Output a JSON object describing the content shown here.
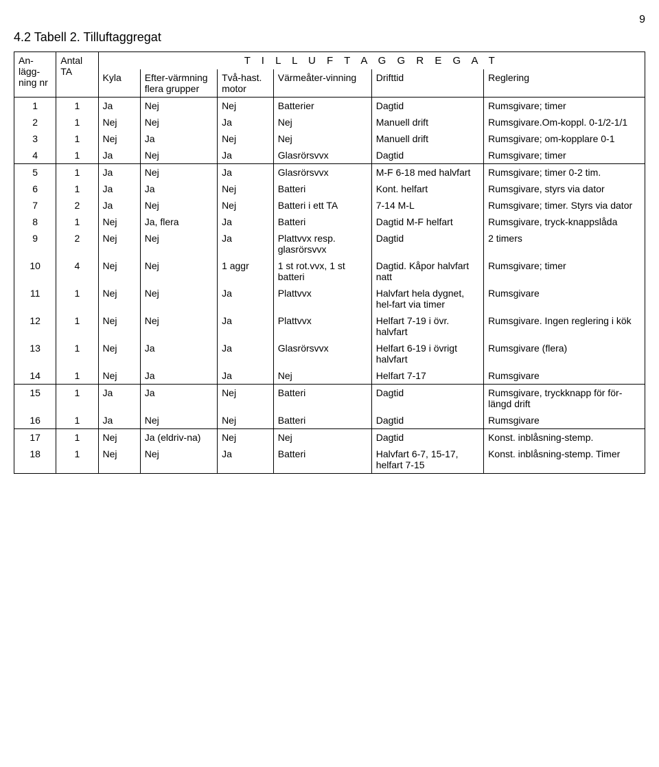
{
  "page_number": "9",
  "title": "4.2 Tabell 2. Tilluftaggregat",
  "super_header": "T I L L U F T A G G R E G A T",
  "headers": {
    "nr": "An-lägg-ning nr",
    "ta": "Antal TA",
    "kyla": "Kyla",
    "eft": "Efter-värmning flera grupper",
    "tva": "Två-hast. motor",
    "varm": "Värmeåter-vinning",
    "drift": "Drifttid",
    "reg": "Reglering"
  },
  "blocks": [
    {
      "rows": [
        {
          "nr": "1",
          "ta": "1",
          "kyla": "Ja",
          "eft": "Nej",
          "tva": "Nej",
          "varm": "Batterier",
          "drift": "Dagtid",
          "reg": "Rumsgivare; timer"
        },
        {
          "nr": "2",
          "ta": "1",
          "kyla": "Nej",
          "eft": "Nej",
          "tva": "Ja",
          "varm": "Nej",
          "drift": "Manuell drift",
          "reg": "Rumsgivare.Om-koppl. 0-1/2-1/1"
        },
        {
          "nr": "3",
          "ta": "1",
          "kyla": "Nej",
          "eft": "Ja",
          "tva": "Nej",
          "varm": "Nej",
          "drift": "Manuell drift",
          "reg": "Rumsgivare; om-kopplare 0-1"
        },
        {
          "nr": "4",
          "ta": "1",
          "kyla": "Ja",
          "eft": "Nej",
          "tva": "Ja",
          "varm": "Glasrörsvvx",
          "drift": "Dagtid",
          "reg": "Rumsgivare; timer"
        }
      ]
    },
    {
      "rows": [
        {
          "nr": "5",
          "ta": "1",
          "kyla": "Ja",
          "eft": "Nej",
          "tva": "Ja",
          "varm": "Glasrörsvvx",
          "drift": "M-F 6-18 med halvfart",
          "reg": "Rumsgivare; timer 0-2 tim."
        },
        {
          "nr": "6",
          "ta": "1",
          "kyla": "Ja",
          "eft": "Ja",
          "tva": "Nej",
          "varm": "Batteri",
          "drift": "Kont. helfart",
          "reg": "Rumsgivare, styrs via dator"
        },
        {
          "nr": "7",
          "ta": "2",
          "kyla": "Ja",
          "eft": "Nej",
          "tva": "Nej",
          "varm": "Batteri i ett TA",
          "drift": "7-14 M-L",
          "reg": "Rumsgivare; timer. Styrs via dator"
        },
        {
          "nr": "8",
          "ta": "1",
          "kyla": "Nej",
          "eft": "Ja, flera",
          "tva": "Ja",
          "varm": "Batteri",
          "drift": "Dagtid M-F helfart",
          "reg": "Rumsgivare, tryck-knappslåda"
        },
        {
          "nr": "9",
          "ta": "2",
          "kyla": "Nej",
          "eft": "Nej",
          "tva": "Ja",
          "varm": "Plattvvx resp. glasrörsvvx",
          "drift": "Dagtid",
          "reg": "2 timers"
        },
        {
          "nr": "10",
          "ta": "4",
          "kyla": "Nej",
          "eft": "Nej",
          "tva": "1 aggr",
          "varm": "1 st rot.vvx, 1 st batteri",
          "drift": "Dagtid. Kåpor halvfart natt",
          "reg": "Rumsgivare; timer"
        },
        {
          "nr": "11",
          "ta": "1",
          "kyla": "Nej",
          "eft": "Nej",
          "tva": "Ja",
          "varm": "Plattvvx",
          "drift": "Halvfart hela dygnet, hel-fart via timer",
          "reg": "Rumsgivare"
        },
        {
          "nr": "12",
          "ta": "1",
          "kyla": "Nej",
          "eft": "Nej",
          "tva": "Ja",
          "varm": "Plattvvx",
          "drift": "Helfart 7-19 i övr. halvfart",
          "reg": "Rumsgivare. Ingen reglering i kök"
        },
        {
          "nr": "13",
          "ta": "1",
          "kyla": "Nej",
          "eft": "Ja",
          "tva": "Ja",
          "varm": "Glasrörsvvx",
          "drift": "Helfart 6-19 i övrigt halvfart",
          "reg": "Rumsgivare (flera)"
        },
        {
          "nr": "14",
          "ta": "1",
          "kyla": "Nej",
          "eft": "Ja",
          "tva": "Ja",
          "varm": "Nej",
          "drift": "Helfart 7-17",
          "reg": "Rumsgivare"
        }
      ]
    },
    {
      "rows": [
        {
          "nr": "15",
          "ta": "1",
          "kyla": "Ja",
          "eft": "Ja",
          "tva": "Nej",
          "varm": "Batteri",
          "drift": "Dagtid",
          "reg": "Rumsgivare, tryckknapp för för-längd drift"
        },
        {
          "nr": "16",
          "ta": "1",
          "kyla": "Ja",
          "eft": "Nej",
          "tva": "Nej",
          "varm": "Batteri",
          "drift": "Dagtid",
          "reg": "Rumsgivare"
        }
      ]
    },
    {
      "rows": [
        {
          "nr": "17",
          "ta": "1",
          "kyla": "Nej",
          "eft": "Ja (eldriv-na)",
          "tva": "Nej",
          "varm": "Nej",
          "drift": "Dagtid",
          "reg": "Konst. inblåsning-stemp."
        },
        {
          "nr": "18",
          "ta": "1",
          "kyla": "Nej",
          "eft": "Nej",
          "tva": "Ja",
          "varm": "Batteri",
          "drift": "Halvfart 6-7, 15-17, helfart 7-15",
          "reg": "Konst. inblåsning-stemp. Timer"
        }
      ]
    }
  ]
}
